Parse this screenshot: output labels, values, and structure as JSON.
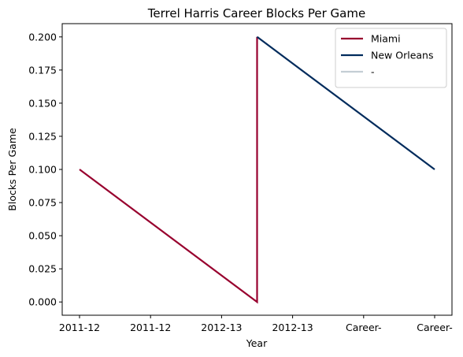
{
  "chart_data": {
    "type": "line",
    "title": "Terrel Harris Career Blocks Per Game",
    "xlabel": "Year",
    "ylabel": "Blocks Per Game",
    "categories": [
      "2011-12",
      "2011-12",
      "2012-13",
      "2012-13",
      "Career-",
      "Career-"
    ],
    "ylim": [
      -0.01,
      0.21
    ],
    "yticks": [
      0.0,
      0.025,
      0.05,
      0.075,
      0.1,
      0.125,
      0.15,
      0.175,
      0.2
    ],
    "ytick_labels": [
      "0.000",
      "0.025",
      "0.050",
      "0.075",
      "0.100",
      "0.125",
      "0.150",
      "0.175",
      "0.200"
    ],
    "grid": false,
    "legend_position": "top-right",
    "series": [
      {
        "name": "Miami",
        "color": "#98002e",
        "points": [
          [
            0,
            0.1
          ],
          [
            2.5,
            0.0
          ],
          [
            2.5,
            0.2
          ]
        ]
      },
      {
        "name": "New Orleans",
        "color": "#002b5c",
        "points": [
          [
            2.5,
            0.2
          ],
          [
            5,
            0.1
          ]
        ]
      },
      {
        "name": "-",
        "color": "#c4ced4",
        "points": []
      }
    ]
  }
}
